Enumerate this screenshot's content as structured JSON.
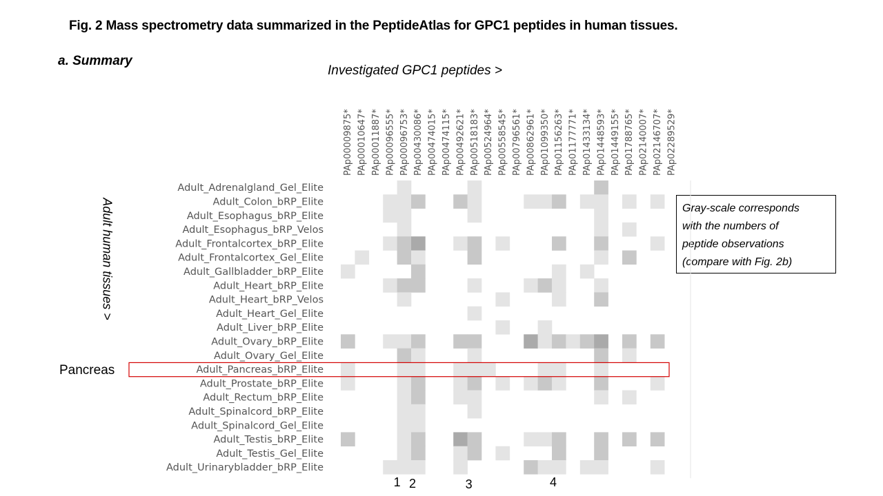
{
  "title": "Fig. 2 Mass spectrometry data summarized in the PeptideAtlas for GPC1 peptides in human tissues.",
  "subtitle": "a. Summary",
  "col_axis_label": "Investigated GPC1 peptides >",
  "row_axis_label": "Adult human tissues >",
  "highlight_label": "Pancreas",
  "legend_lines": [
    "Gray-scale corresponds",
    "with the numbers of",
    "peptide observations",
    "(compare with Fig. 2b)"
  ],
  "markers": [
    {
      "text": "1",
      "col": 4
    },
    {
      "text": "2",
      "col": 5
    },
    {
      "text": "3",
      "col": 9
    },
    {
      "text": "4",
      "col": 15
    }
  ],
  "chart_data": {
    "type": "heatmap",
    "title": "a. Summary",
    "xlabel": "Investigated GPC1 peptides >",
    "ylabel": "Adult human tissues >",
    "value_meaning": "gray-scale intensity, 0 = none, 3 = darkest (relative number of peptide observations)",
    "highlighted_row": "Adult_Pancreas_bRP_Elite",
    "columns": [
      "PAp00009875*",
      "PAp00010647*",
      "PAp00011887*",
      "PAp00096555*",
      "PAp00096753*",
      "PAp00430086*",
      "PAp00474015*",
      "PAp00474115*",
      "PAp00492621*",
      "PAp00518183*",
      "PAp00524964*",
      "PAp00558545*",
      "PAp00796561*",
      "PAp00862961*",
      "PAp01099350*",
      "PAp01156263*",
      "PAp01177771*",
      "PAp01433134*",
      "PAp01448593*",
      "PAp01449155*",
      "PAp01788765*",
      "PAp02140007*",
      "PAp02146707*",
      "PAp02289529*"
    ],
    "rows": [
      "Adult_Adrenalgland_Gel_Elite",
      "Adult_Colon_bRP_Elite",
      "Adult_Esophagus_bRP_Elite",
      "Adult_Esophagus_bRP_Velos",
      "Adult_Frontalcortex_bRP_Elite",
      "Adult_Frontalcortex_Gel_Elite",
      "Adult_Gallbladder_bRP_Elite",
      "Adult_Heart_bRP_Elite",
      "Adult_Heart_bRP_Velos",
      "Adult_Heart_Gel_Elite",
      "Adult_Liver_bRP_Elite",
      "Adult_Ovary_bRP_Elite",
      "Adult_Ovary_Gel_Elite",
      "Adult_Pancreas_bRP_Elite",
      "Adult_Prostate_bRP_Elite",
      "Adult_Rectum_bRP_Elite",
      "Adult_Spinalcord_bRP_Elite",
      "Adult_Spinalcord_Gel_Elite",
      "Adult_Testis_bRP_Elite",
      "Adult_Testis_Gel_Elite",
      "Adult_Urinarybladder_bRP_Elite"
    ],
    "values": [
      [
        0,
        0,
        0,
        0,
        1,
        0,
        0,
        0,
        0,
        1,
        0,
        0,
        0,
        0,
        0,
        0,
        0,
        0,
        2,
        0,
        0,
        0,
        0,
        0
      ],
      [
        0,
        0,
        0,
        1,
        1,
        2,
        0,
        0,
        2,
        1,
        0,
        0,
        0,
        1,
        1,
        2,
        0,
        1,
        1,
        0,
        1,
        0,
        1,
        0
      ],
      [
        0,
        0,
        0,
        1,
        1,
        0,
        0,
        0,
        0,
        1,
        0,
        0,
        0,
        0,
        0,
        0,
        0,
        0,
        1,
        0,
        0,
        0,
        0,
        0
      ],
      [
        0,
        0,
        0,
        0,
        1,
        0,
        0,
        0,
        0,
        0,
        0,
        0,
        0,
        0,
        0,
        0,
        0,
        0,
        1,
        0,
        1,
        0,
        0,
        0
      ],
      [
        0,
        0,
        0,
        1,
        2,
        3,
        0,
        0,
        1,
        2,
        0,
        1,
        0,
        0,
        0,
        2,
        0,
        0,
        2,
        0,
        0,
        0,
        1,
        0
      ],
      [
        0,
        1,
        0,
        0,
        2,
        1,
        0,
        0,
        0,
        2,
        0,
        0,
        0,
        0,
        0,
        0,
        0,
        0,
        1,
        0,
        2,
        0,
        0,
        0
      ],
      [
        1,
        0,
        0,
        0,
        0,
        2,
        0,
        0,
        0,
        0,
        0,
        0,
        0,
        0,
        0,
        1,
        0,
        1,
        0,
        0,
        0,
        0,
        0,
        0
      ],
      [
        0,
        0,
        0,
        1,
        2,
        2,
        0,
        0,
        0,
        1,
        0,
        0,
        0,
        1,
        2,
        1,
        0,
        0,
        1,
        0,
        0,
        0,
        0,
        0
      ],
      [
        0,
        0,
        0,
        0,
        1,
        0,
        0,
        0,
        0,
        0,
        0,
        1,
        0,
        0,
        0,
        1,
        0,
        0,
        2,
        0,
        0,
        0,
        0,
        0
      ],
      [
        0,
        0,
        0,
        0,
        0,
        0,
        0,
        0,
        0,
        1,
        0,
        0,
        0,
        0,
        0,
        0,
        0,
        0,
        0,
        0,
        0,
        0,
        0,
        0
      ],
      [
        0,
        0,
        0,
        0,
        0,
        0,
        0,
        0,
        0,
        0,
        0,
        1,
        0,
        0,
        1,
        0,
        0,
        0,
        0,
        0,
        0,
        0,
        0,
        0
      ],
      [
        2,
        0,
        0,
        1,
        1,
        2,
        0,
        0,
        2,
        2,
        0,
        0,
        0,
        3,
        1,
        2,
        1,
        2,
        3,
        0,
        2,
        0,
        2,
        0
      ],
      [
        0,
        0,
        0,
        0,
        2,
        1,
        0,
        0,
        0,
        1,
        0,
        0,
        0,
        0,
        0,
        0,
        0,
        0,
        2,
        0,
        1,
        0,
        0,
        0
      ],
      [
        1,
        0,
        0,
        0,
        1,
        1,
        0,
        0,
        1,
        1,
        1,
        0,
        0,
        0,
        1,
        1,
        0,
        0,
        1,
        0,
        0,
        0,
        0,
        0
      ],
      [
        1,
        0,
        0,
        0,
        1,
        2,
        0,
        0,
        1,
        2,
        0,
        1,
        0,
        1,
        2,
        1,
        0,
        0,
        2,
        0,
        0,
        0,
        1,
        0
      ],
      [
        0,
        0,
        0,
        0,
        1,
        2,
        0,
        0,
        1,
        1,
        0,
        0,
        0,
        0,
        0,
        0,
        0,
        0,
        1,
        0,
        1,
        0,
        0,
        0
      ],
      [
        0,
        0,
        0,
        0,
        1,
        1,
        0,
        0,
        0,
        1,
        0,
        0,
        0,
        0,
        0,
        0,
        0,
        0,
        0,
        0,
        0,
        0,
        0,
        0
      ],
      [
        0,
        0,
        0,
        0,
        1,
        1,
        0,
        0,
        0,
        0,
        0,
        0,
        0,
        0,
        0,
        0,
        0,
        0,
        0,
        0,
        0,
        0,
        0,
        0
      ],
      [
        2,
        0,
        0,
        0,
        1,
        2,
        0,
        0,
        3,
        2,
        0,
        0,
        0,
        1,
        1,
        2,
        0,
        0,
        2,
        0,
        2,
        0,
        2,
        0
      ],
      [
        0,
        0,
        0,
        0,
        1,
        2,
        0,
        0,
        1,
        2,
        0,
        1,
        0,
        0,
        0,
        2,
        0,
        0,
        2,
        0,
        0,
        0,
        0,
        0
      ],
      [
        0,
        0,
        0,
        1,
        1,
        1,
        0,
        0,
        1,
        0,
        0,
        0,
        0,
        2,
        1,
        1,
        0,
        1,
        1,
        0,
        0,
        0,
        1,
        0
      ]
    ],
    "legend": "Gray-scale corresponds with the numbers of peptide observations (compare with Fig. 2b)"
  },
  "colors": {
    "level_1": "#e4e4e4",
    "level_2": "#c8c8c8",
    "level_3": "#aaaaaa",
    "highlight": "#d40000",
    "grid_line": "#e6e6e6"
  }
}
